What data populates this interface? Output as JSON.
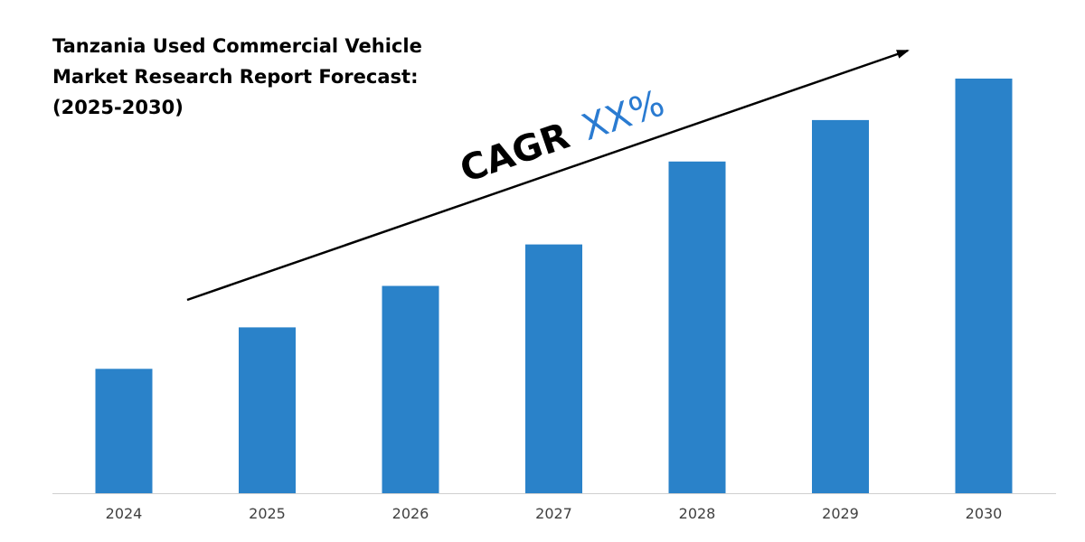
{
  "chart_data": {
    "type": "bar",
    "title_lines": [
      "Tanzania Used Commercial Vehicle",
      "Market Research Report Forecast:",
      "(2025-2030)"
    ],
    "categories": [
      "2024",
      "2025",
      "2026",
      "2027",
      "2028",
      "2029",
      "2030"
    ],
    "values": [
      30,
      40,
      50,
      60,
      80,
      90,
      100
    ],
    "ylim": [
      0,
      100
    ],
    "xlabel": "",
    "ylabel": "",
    "grid": false,
    "legend": "none",
    "annotation": {
      "prefix": "CAGR",
      "value": "XX%"
    }
  },
  "colors": {
    "bar": "#2a82c9",
    "cagr_value": "#2a7bd1",
    "arrow": "#000000",
    "axis": "#d0d0d0"
  }
}
